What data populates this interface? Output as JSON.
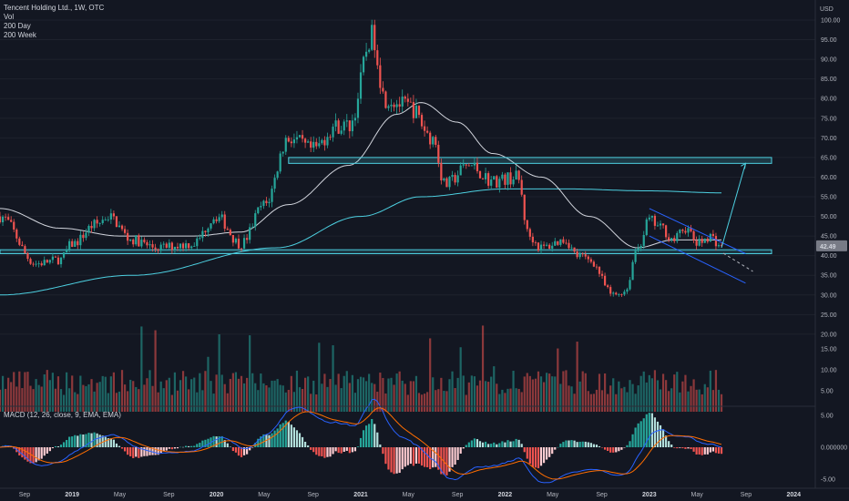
{
  "header": {
    "title": "Tencent Holding Ltd., 1W, OTC",
    "indicators": [
      "Vol",
      "200 Day",
      "200 Week"
    ],
    "currency": "USD",
    "price_badge": "42.49"
  },
  "macd_panel": {
    "label": "MACD (12, 26, close, 9, EMA, EMA)",
    "y_ticks": [
      "5.00",
      "0.000000",
      "-5.00"
    ]
  },
  "chart_data": {
    "type": "candlestick",
    "symbol": "Tencent Holding Ltd.",
    "interval": "1W",
    "y_ticks": [
      100,
      95,
      90,
      85,
      80,
      75,
      70,
      65,
      60,
      55,
      50,
      45,
      40,
      35,
      30,
      25,
      20,
      15,
      10,
      5
    ],
    "y_tick_labels": [
      "100.00",
      "95.00",
      "90.00",
      "85.00",
      "80.00",
      "75.00",
      "70.00",
      "65.00",
      "60.00",
      "55.00",
      "50.00",
      "45.00",
      "40.00",
      "35.00",
      "30.00",
      "25.00",
      "20.00",
      "15.00",
      "10.00",
      "5.00"
    ],
    "x_labels": [
      "Sep",
      "2019",
      "May",
      "Sep",
      "2020",
      "May",
      "Sep",
      "2021",
      "May",
      "Sep",
      "2022",
      "May",
      "Sep",
      "2023",
      "May",
      "Sep",
      "2024"
    ],
    "price_path_keypoints": [
      {
        "date": "2018-07",
        "close": 50
      },
      {
        "date": "2018-10",
        "close": 38
      },
      {
        "date": "2018-12",
        "close": 39
      },
      {
        "date": "2019-01",
        "close": 43
      },
      {
        "date": "2019-03",
        "close": 48
      },
      {
        "date": "2019-04",
        "close": 50
      },
      {
        "date": "2019-06",
        "close": 44
      },
      {
        "date": "2019-08",
        "close": 42
      },
      {
        "date": "2019-11",
        "close": 43
      },
      {
        "date": "2020-01",
        "close": 50
      },
      {
        "date": "2020-03",
        "close": 43
      },
      {
        "date": "2020-05",
        "close": 53
      },
      {
        "date": "2020-07",
        "close": 70
      },
      {
        "date": "2020-09",
        "close": 67
      },
      {
        "date": "2020-11",
        "close": 73
      },
      {
        "date": "2020-12",
        "close": 73
      },
      {
        "date": "2021-02",
        "close": 96
      },
      {
        "date": "2021-03",
        "close": 80
      },
      {
        "date": "2021-05",
        "close": 78
      },
      {
        "date": "2021-07",
        "close": 70
      },
      {
        "date": "2021-08",
        "close": 58
      },
      {
        "date": "2021-10",
        "close": 63
      },
      {
        "date": "2021-12",
        "close": 59
      },
      {
        "date": "2022-02",
        "close": 60
      },
      {
        "date": "2022-03",
        "close": 45
      },
      {
        "date": "2022-04",
        "close": 42
      },
      {
        "date": "2022-06",
        "close": 44
      },
      {
        "date": "2022-07",
        "close": 40
      },
      {
        "date": "2022-08",
        "close": 39
      },
      {
        "date": "2022-10",
        "close": 30
      },
      {
        "date": "2022-11",
        "close": 31
      },
      {
        "date": "2022-12",
        "close": 42
      },
      {
        "date": "2023-01",
        "close": 49
      },
      {
        "date": "2023-02",
        "close": 47
      },
      {
        "date": "2023-03",
        "close": 44
      },
      {
        "date": "2023-04",
        "close": 47
      },
      {
        "date": "2023-05",
        "close": 43
      },
      {
        "date": "2023-06",
        "close": 45
      },
      {
        "date": "2023-07",
        "close": 42.49
      }
    ],
    "ma_200day_keypoints": [
      {
        "date": "2018-07",
        "value": 52
      },
      {
        "date": "2018-12",
        "value": 47
      },
      {
        "date": "2019-05",
        "value": 45
      },
      {
        "date": "2019-11",
        "value": 45
      },
      {
        "date": "2020-03",
        "value": 46
      },
      {
        "date": "2020-07",
        "value": 53
      },
      {
        "date": "2020-12",
        "value": 63
      },
      {
        "date": "2021-04",
        "value": 76
      },
      {
        "date": "2021-06",
        "value": 79
      },
      {
        "date": "2021-09",
        "value": 74
      },
      {
        "date": "2021-12",
        "value": 66
      },
      {
        "date": "2022-04",
        "value": 60
      },
      {
        "date": "2022-08",
        "value": 50
      },
      {
        "date": "2022-12",
        "value": 42
      },
      {
        "date": "2023-03",
        "value": 44
      },
      {
        "date": "2023-07",
        "value": 44
      }
    ],
    "ma_200week_keypoints": [
      {
        "date": "2018-07",
        "value": 30
      },
      {
        "date": "2019-06",
        "value": 35
      },
      {
        "date": "2020-06",
        "value": 42
      },
      {
        "date": "2021-01",
        "value": 50
      },
      {
        "date": "2021-06",
        "value": 55
      },
      {
        "date": "2022-01",
        "value": 57
      },
      {
        "date": "2022-06",
        "value": 57
      },
      {
        "date": "2023-01",
        "value": 56.5
      },
      {
        "date": "2023-07",
        "value": 56
      }
    ],
    "zones": [
      {
        "name": "resistance-zone",
        "low": 63.5,
        "high": 65,
        "from": "2020-07",
        "to": "2024-02"
      },
      {
        "name": "support-zone",
        "low": 40.5,
        "high": 41.5,
        "from": "2018-07",
        "to": "2024-02"
      }
    ],
    "trend_channel": {
      "upper": [
        {
          "date": "2023-01",
          "value": 52
        },
        {
          "date": "2023-09",
          "value": 40.5
        }
      ],
      "lower": [
        {
          "date": "2023-01",
          "value": 45
        },
        {
          "date": "2023-09",
          "value": 33
        }
      ]
    },
    "projection_arrow": [
      {
        "date": "2023-07",
        "value": 42
      },
      {
        "date": "2023-09",
        "value": 63.5
      }
    ],
    "volume_ticks": [
      20,
      15,
      10,
      5
    ],
    "colors": {
      "up": "#26a69a",
      "down": "#ef5350",
      "ma_200day": "#d1d4dc",
      "ma_200week": "#4dd0e1",
      "zone": "#4dd0e1",
      "channel": "#2962ff",
      "macd": "#2962ff",
      "signal": "#ff6d00",
      "price_badge": "#787b86"
    }
  }
}
